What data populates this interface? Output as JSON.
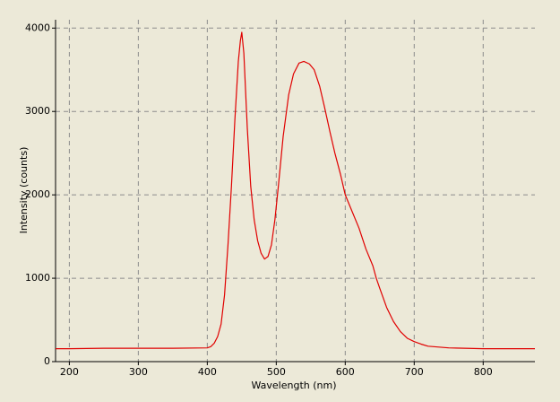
{
  "chart_data": {
    "type": "line",
    "x_label": "Wavelength (nm)",
    "y_label": "Intensity (counts)",
    "color": "#e00000",
    "grid": true,
    "xlim": [
      180,
      875
    ],
    "ylim": [
      0,
      4100
    ],
    "xticks": [
      200,
      300,
      400,
      500,
      600,
      700,
      800
    ],
    "yticks": [
      0,
      1000,
      2000,
      3000,
      4000
    ],
    "x": [
      180,
      200,
      250,
      300,
      350,
      400,
      405,
      410,
      415,
      420,
      425,
      430,
      435,
      440,
      445,
      448,
      450,
      453,
      458,
      463,
      468,
      473,
      478,
      483,
      488,
      493,
      498,
      503,
      510,
      518,
      525,
      533,
      540,
      548,
      555,
      563,
      570,
      578,
      585,
      593,
      600,
      610,
      620,
      630,
      640,
      645,
      650,
      660,
      670,
      680,
      690,
      700,
      710,
      720,
      750,
      800,
      875
    ],
    "values": [
      155,
      155,
      160,
      160,
      160,
      165,
      180,
      220,
      300,
      450,
      800,
      1400,
      2100,
      2900,
      3600,
      3850,
      3950,
      3700,
      2800,
      2100,
      1700,
      1450,
      1300,
      1230,
      1260,
      1400,
      1700,
      2100,
      2700,
      3200,
      3450,
      3580,
      3600,
      3570,
      3500,
      3300,
      3050,
      2750,
      2500,
      2250,
      2000,
      1800,
      1600,
      1350,
      1150,
      1000,
      880,
      650,
      480,
      360,
      280,
      240,
      210,
      185,
      165,
      155,
      155
    ]
  }
}
